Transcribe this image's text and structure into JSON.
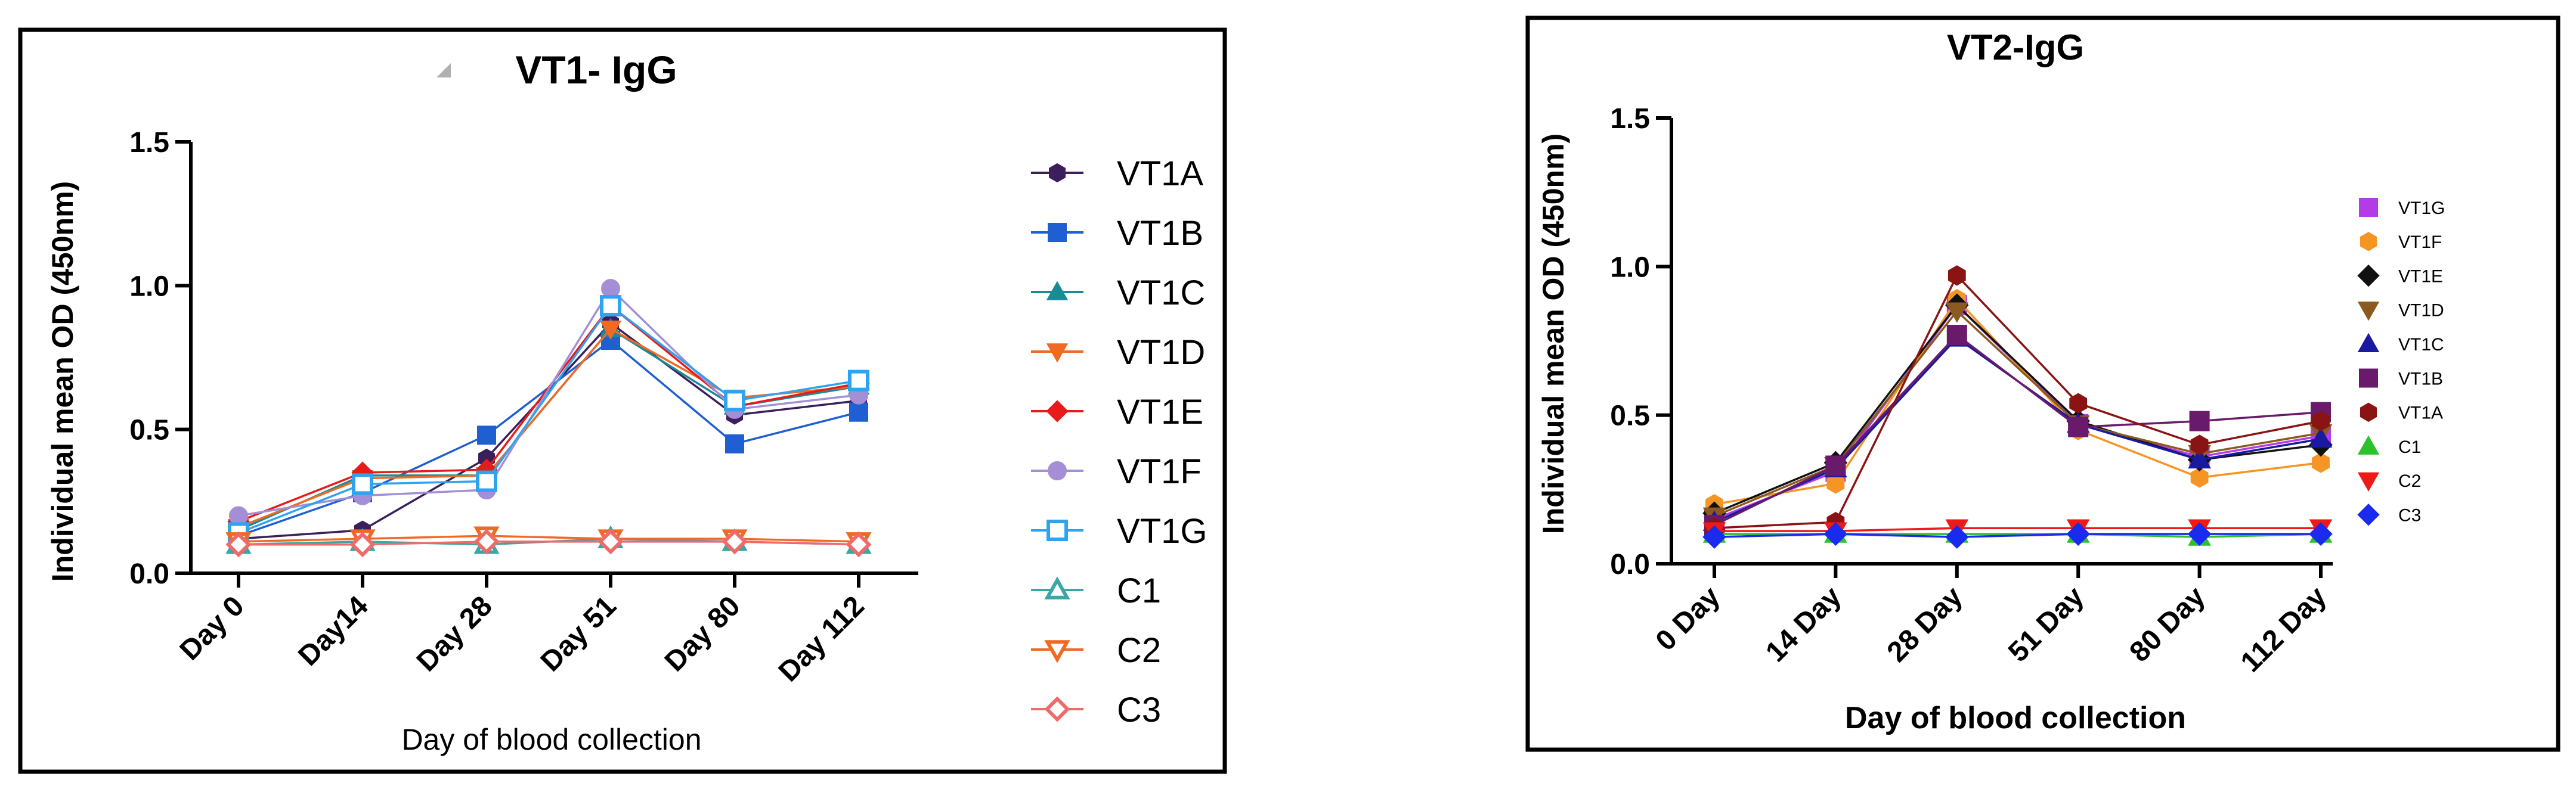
{
  "colors": {
    "VT1A": "#3a1f5c",
    "VT1B": "#1f5fd1",
    "VT1C": "#1a8a94",
    "VT1D": "#f06a24",
    "VT1E": "#e81a1a",
    "VT1F": "#a48ed6",
    "VT1G": "#2ea3ef",
    "C1": "#3aa6a6",
    "C2": "#f06a24",
    "C3": "#f06a6a",
    "P2_VT1G": "#b43be8",
    "P2_VT1F": "#f59523",
    "P2_VT1E": "#111111",
    "P2_VT1D": "#8a5a1e",
    "P2_VT1C": "#1a1aa0",
    "P2_VT1B": "#6a1a6a",
    "P2_VT1A": "#8a1414",
    "P2_C1": "#2cc22c",
    "P2_C2": "#ee1a1a",
    "P2_C3": "#1a2aee"
  },
  "chart_data": [
    {
      "type": "line",
      "title": "VT1- IgG",
      "xlabel": "Day of blood collection",
      "ylabel": "Individual mean OD (450nm)",
      "categories": [
        "Day 0",
        "Day14",
        "Day 28",
        "Day 51",
        "Day 80",
        "Day 112"
      ],
      "ylim": [
        0,
        1.5
      ],
      "yticks": [
        "0.0",
        "0.5",
        "1.0",
        "1.5"
      ],
      "legend_position": "right",
      "series": [
        {
          "name": "VT1A",
          "marker": "hexagon",
          "values": [
            0.12,
            0.15,
            0.4,
            0.87,
            0.55,
            0.6
          ]
        },
        {
          "name": "VT1B",
          "marker": "square",
          "values": [
            0.13,
            0.28,
            0.48,
            0.81,
            0.45,
            0.56
          ]
        },
        {
          "name": "VT1C",
          "marker": "triangle",
          "values": [
            0.15,
            0.34,
            0.34,
            0.85,
            0.58,
            0.65
          ]
        },
        {
          "name": "VT1D",
          "marker": "triangle-down",
          "values": [
            0.16,
            0.33,
            0.34,
            0.85,
            0.61,
            0.65
          ]
        },
        {
          "name": "VT1E",
          "marker": "diamond",
          "values": [
            0.18,
            0.35,
            0.36,
            0.93,
            0.58,
            0.66
          ]
        },
        {
          "name": "VT1F",
          "marker": "circle",
          "values": [
            0.2,
            0.27,
            0.29,
            0.99,
            0.57,
            0.62
          ]
        },
        {
          "name": "VT1G",
          "marker": "square-open",
          "values": [
            0.14,
            0.31,
            0.32,
            0.93,
            0.6,
            0.67
          ]
        },
        {
          "name": "C1",
          "marker": "triangle-open",
          "values": [
            0.1,
            0.11,
            0.1,
            0.12,
            0.11,
            0.1
          ]
        },
        {
          "name": "C2",
          "marker": "triangle-down-open",
          "values": [
            0.11,
            0.12,
            0.13,
            0.12,
            0.12,
            0.11
          ]
        },
        {
          "name": "C3",
          "marker": "diamond-open",
          "values": [
            0.1,
            0.1,
            0.11,
            0.11,
            0.11,
            0.1
          ]
        }
      ]
    },
    {
      "type": "line",
      "title": "VT2-IgG",
      "xlabel": "Day of blood collection",
      "ylabel": "Individual mean OD (450nm)",
      "categories": [
        "0 Day",
        "14 Day",
        "28 Day",
        "51 Day",
        "80 Day",
        "112 Day"
      ],
      "ylim": [
        0,
        1.5
      ],
      "yticks": [
        "0.0",
        "0.5",
        "1.0",
        "1.5"
      ],
      "legend_position": "right",
      "series": [
        {
          "name": "VT1G",
          "marker": "square",
          "values": [
            0.15,
            0.31,
            0.87,
            0.47,
            0.36,
            0.43
          ]
        },
        {
          "name": "VT1F",
          "marker": "hexagon",
          "values": [
            0.2,
            0.27,
            0.89,
            0.45,
            0.29,
            0.34
          ]
        },
        {
          "name": "VT1E",
          "marker": "diamond",
          "values": [
            0.17,
            0.34,
            0.87,
            0.48,
            0.35,
            0.4
          ]
        },
        {
          "name": "VT1D",
          "marker": "triangle-down",
          "values": [
            0.16,
            0.33,
            0.85,
            0.47,
            0.37,
            0.44
          ]
        },
        {
          "name": "VT1C",
          "marker": "triangle",
          "values": [
            0.14,
            0.32,
            0.76,
            0.47,
            0.35,
            0.42
          ]
        },
        {
          "name": "VT1B",
          "marker": "square",
          "values": [
            0.13,
            0.33,
            0.77,
            0.46,
            0.48,
            0.51
          ]
        },
        {
          "name": "VT1A",
          "marker": "hexagon",
          "values": [
            0.12,
            0.14,
            0.97,
            0.54,
            0.4,
            0.48
          ]
        },
        {
          "name": "C1",
          "marker": "triangle",
          "values": [
            0.1,
            0.1,
            0.1,
            0.1,
            0.09,
            0.1
          ]
        },
        {
          "name": "C2",
          "marker": "triangle-down",
          "values": [
            0.11,
            0.11,
            0.12,
            0.12,
            0.12,
            0.12
          ]
        },
        {
          "name": "C3",
          "marker": "diamond",
          "values": [
            0.09,
            0.1,
            0.09,
            0.1,
            0.1,
            0.1
          ]
        }
      ]
    }
  ]
}
